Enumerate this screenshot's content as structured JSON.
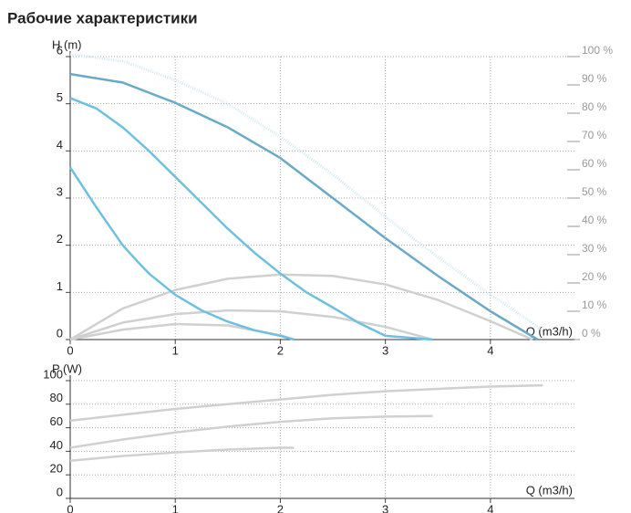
{
  "chart_data": [
    {
      "type": "line",
      "title": "Рабочие характеристики",
      "xlabel": "Q (m3/h)",
      "ylabel": "H (m)",
      "xlim": [
        0,
        4.8
      ],
      "xticks": [
        0,
        1,
        2,
        3,
        4
      ],
      "ylim": [
        0,
        6
      ],
      "yticks": [
        0,
        1,
        2,
        3,
        4,
        5,
        6
      ],
      "y2lim": [
        0,
        100
      ],
      "y2ticks": [
        {
          "value": 0,
          "label": "0 %"
        },
        {
          "value": 10,
          "label": "10 %"
        },
        {
          "value": 20,
          "label": "20 %"
        },
        {
          "value": 30,
          "label": "30 %"
        },
        {
          "value": 40,
          "label": "40 %"
        },
        {
          "value": 50,
          "label": "50 %"
        },
        {
          "value": 60,
          "label": "60 %"
        },
        {
          "value": 70,
          "label": "70 %"
        },
        {
          "value": 80,
          "label": "80 %"
        },
        {
          "value": 90,
          "label": "90 %"
        },
        {
          "value": 100,
          "label": "100 %"
        }
      ],
      "grid": true,
      "series": [
        {
          "color": "#d2e9f5",
          "dotted": true,
          "x": [
            0,
            0.5,
            1,
            1.5,
            2,
            2.5,
            3,
            3.5,
            4,
            4.5
          ],
          "values": [
            6.05,
            5.9,
            5.5,
            5.0,
            4.3,
            3.5,
            2.6,
            1.75,
            0.95,
            0.2
          ]
        },
        {
          "color": "#d0d0d0",
          "axis": "y2",
          "x": [
            0,
            0.5,
            1,
            1.5,
            2,
            2.5,
            3,
            3.5,
            4,
            4.4
          ],
          "values": [
            0,
            11,
            17.5,
            21.5,
            23,
            22.5,
            19.5,
            14,
            6.5,
            0
          ]
        },
        {
          "color": "#d0d0d0",
          "axis": "y2",
          "x": [
            0,
            0.5,
            1,
            1.5,
            2,
            2.5,
            3,
            3.45
          ],
          "values": [
            0,
            6,
            9,
            10.3,
            10,
            8,
            4.5,
            0
          ]
        },
        {
          "color": "#d0d0d0",
          "axis": "y2",
          "x": [
            0,
            0.5,
            1,
            1.5,
            2,
            2.13
          ],
          "values": [
            0,
            3.5,
            5.5,
            5,
            1.5,
            0
          ]
        },
        {
          "color": "#6aaac8",
          "x": [
            0,
            0.5,
            1,
            1.5,
            2,
            2.5,
            3,
            3.5,
            4,
            4.45
          ],
          "values": [
            5.63,
            5.45,
            5.02,
            4.5,
            3.85,
            3.0,
            2.15,
            1.35,
            0.6,
            0
          ]
        },
        {
          "color": "#6ec0e0",
          "x": [
            0,
            0.25,
            0.5,
            0.75,
            1,
            1.25,
            1.5,
            1.75,
            2,
            2.25,
            2.5,
            2.75,
            3,
            3.45
          ],
          "values": [
            5.12,
            4.9,
            4.5,
            4.0,
            3.45,
            2.9,
            2.35,
            1.85,
            1.4,
            1.0,
            0.68,
            0.35,
            0.08,
            0
          ]
        },
        {
          "color": "#6ec0e0",
          "x": [
            0,
            0.25,
            0.5,
            0.63,
            0.75,
            1,
            1.25,
            1.5,
            1.75,
            2,
            2.13
          ],
          "values": [
            3.65,
            2.8,
            2.0,
            1.68,
            1.4,
            0.95,
            0.62,
            0.38,
            0.2,
            0.08,
            0
          ]
        }
      ]
    },
    {
      "type": "line",
      "xlabel": "Q (m3/h)",
      "ylabel": "P (W)",
      "xlim": [
        0,
        4.8
      ],
      "xticks": [
        0,
        1,
        2,
        3,
        4
      ],
      "ylim": [
        0,
        100
      ],
      "yticks": [
        0,
        20,
        40,
        60,
        80,
        100
      ],
      "grid": true,
      "series": [
        {
          "color": "#d0d0d0",
          "x": [
            0,
            0.5,
            1,
            1.5,
            2,
            2.5,
            3,
            3.5,
            4,
            4.5
          ],
          "values": [
            66,
            71,
            76,
            80,
            84,
            88,
            91,
            93,
            95,
            96
          ]
        },
        {
          "color": "#d0d0d0",
          "x": [
            0,
            0.5,
            1,
            1.5,
            2,
            2.5,
            3,
            3.45
          ],
          "values": [
            43,
            50,
            56,
            61,
            65,
            68,
            69.5,
            70
          ]
        },
        {
          "color": "#d0d0d0",
          "x": [
            0,
            0.5,
            1,
            1.5,
            2,
            2.13
          ],
          "values": [
            32,
            36,
            39,
            41.5,
            43,
            43
          ]
        }
      ]
    }
  ]
}
